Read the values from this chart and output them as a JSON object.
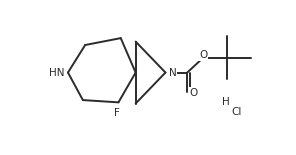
{
  "bg_color": "#ffffff",
  "line_color": "#2b2b2b",
  "line_width": 1.4,
  "font_size": 7.5,
  "figsize": [
    2.96,
    1.55
  ],
  "dpi": 100,
  "xlim": [
    0,
    10
  ],
  "ylim": [
    0,
    5.2
  ]
}
